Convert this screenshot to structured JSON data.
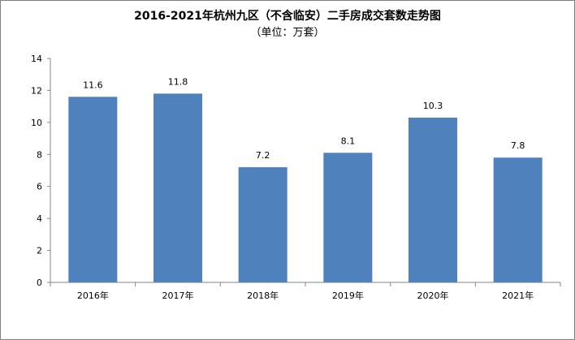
{
  "chart_data": {
    "type": "bar",
    "title": "2016-2021年杭州九区（不含临安）二手房成交套数走势图",
    "subtitle": "（单位：万套）",
    "categories": [
      "2016年",
      "2017年",
      "2018年",
      "2019年",
      "2020年",
      "2021年"
    ],
    "values": [
      11.6,
      11.8,
      7.2,
      8.1,
      10.3,
      7.8
    ],
    "data_labels": [
      "11.6",
      "11.8",
      "7.2",
      "8.1",
      "10.3",
      "7.8"
    ],
    "yticks": [
      "0",
      "2",
      "4",
      "6",
      "8",
      "10",
      "12",
      "14"
    ],
    "ylim": [
      0,
      14
    ],
    "xlabel": "",
    "ylabel": "",
    "grid": false,
    "bar_color": "#4f81bd"
  }
}
